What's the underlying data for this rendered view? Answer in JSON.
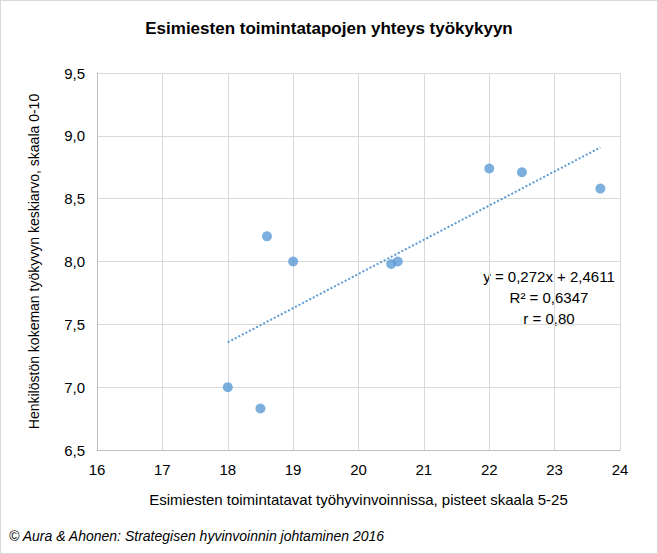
{
  "chart_data": {
    "type": "scatter",
    "title": "Esimiesten toimintatapojen yhteys työkykyyn",
    "x_label": "Esimiesten toimintatavat työhyvinvoinnissa, pisteet skaala 5-25",
    "y_label": "Henkilöstön kokeman työkyvyn keskiarvo, skaala 0-10",
    "source": "© Aura & Ahonen: Strategisen hyvinvoinnin johtaminen 2016",
    "annotations": [
      "y = 0,272x + 2,4611",
      "R² = 0,6347",
      "r = 0,80"
    ],
    "x": [
      18.0,
      18.5,
      18.6,
      19.0,
      20.5,
      20.6,
      22.0,
      22.5,
      23.7
    ],
    "values": [
      7.0,
      6.83,
      8.2,
      8.0,
      7.98,
      8.0,
      8.74,
      8.71,
      8.58
    ],
    "color": "#5b9bd5",
    "marker": "circle",
    "trendline": {
      "slope": 0.272,
      "intercept": 2.4611,
      "x": [
        18.0,
        23.7
      ],
      "line_style": "dotted"
    },
    "xlim": [
      16,
      24
    ],
    "xticks": [
      16,
      17,
      18,
      19,
      20,
      21,
      22,
      23,
      24
    ],
    "ylim": [
      6.5,
      9.5
    ],
    "yticks": [
      {
        "value": 6.5,
        "label": "6,5"
      },
      {
        "value": 7.0,
        "label": "7,0"
      },
      {
        "value": 7.5,
        "label": "7,5"
      },
      {
        "value": 8.0,
        "label": "8,0"
      },
      {
        "value": 8.5,
        "label": "8,5"
      },
      {
        "value": 9.0,
        "label": "9,0"
      },
      {
        "value": 9.5,
        "label": "9,5"
      }
    ],
    "grid": true
  }
}
